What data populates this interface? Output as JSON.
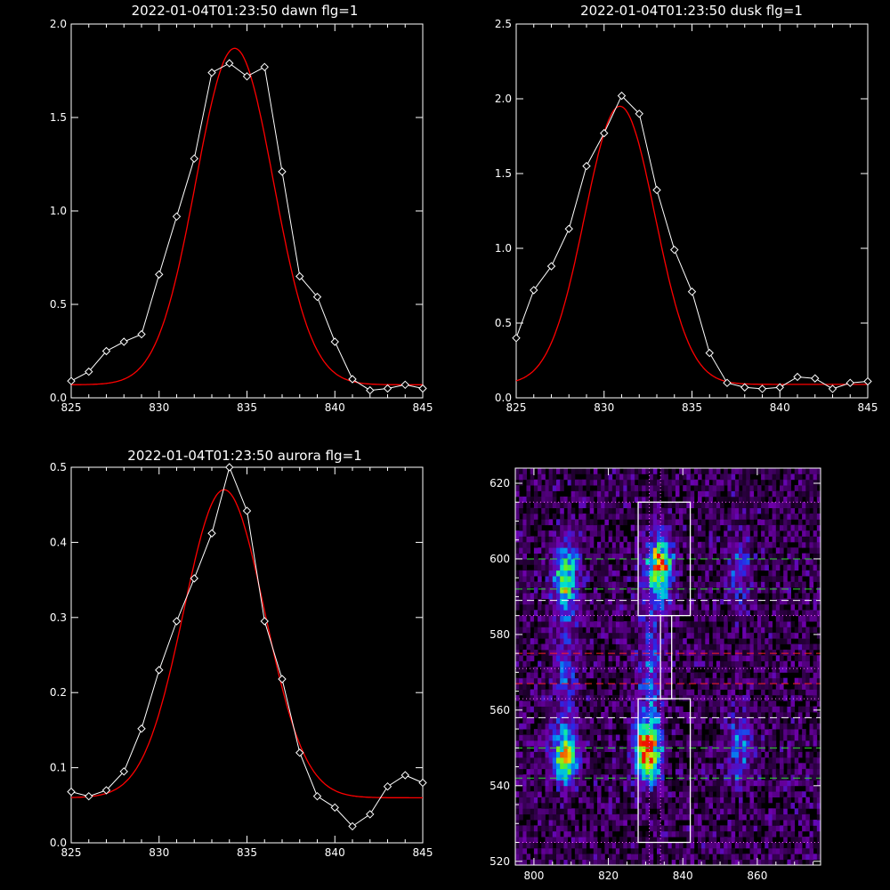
{
  "colors": {
    "background": "#000000",
    "observed": "#ffffff",
    "fit": "#ff0000"
  },
  "chart_data": [
    {
      "type": "line",
      "title": "2022-01-04T01:23:50 dawn flg=1",
      "xlim": [
        825,
        845
      ],
      "ylim": [
        0,
        2.0
      ],
      "xticks": [
        "825",
        "830",
        "835",
        "840",
        "845"
      ],
      "yticks": [
        "0.0",
        "0.5",
        "1.0",
        "1.5",
        "2.0"
      ],
      "xtick_values": [
        825,
        830,
        835,
        840,
        845
      ],
      "ytick_values": [
        0,
        0.5,
        1.0,
        1.5,
        2.0
      ],
      "observed": {
        "x": [
          825,
          826,
          827,
          828,
          829,
          830,
          831,
          832,
          833,
          834,
          835,
          836,
          837,
          838,
          839,
          840,
          841,
          842,
          843,
          844,
          845
        ],
        "y": [
          0.09,
          0.14,
          0.25,
          0.3,
          0.34,
          0.66,
          0.97,
          1.28,
          1.74,
          1.79,
          1.72,
          1.77,
          1.21,
          0.65,
          0.54,
          0.3,
          0.1,
          0.04,
          0.05,
          0.07,
          0.05
        ]
      },
      "fit": {
        "amplitude": 1.8,
        "center": 834.3,
        "sigma": 2.2,
        "offset": 0.07
      },
      "grid": false
    },
    {
      "type": "line",
      "title": "2022-01-04T01:23:50 dusk flg=1",
      "xlim": [
        825,
        845
      ],
      "ylim": [
        0,
        2.5
      ],
      "xticks": [
        "825",
        "830",
        "835",
        "840",
        "845"
      ],
      "yticks": [
        "0.0",
        "0.5",
        "1.0",
        "1.5",
        "2.0",
        "2.5"
      ],
      "xtick_values": [
        825,
        830,
        835,
        840,
        845
      ],
      "ytick_values": [
        0,
        0.5,
        1.0,
        1.5,
        2.0,
        2.5
      ],
      "observed": {
        "x": [
          825,
          826,
          827,
          828,
          829,
          830,
          831,
          832,
          833,
          834,
          835,
          836,
          837,
          838,
          839,
          840,
          841,
          842,
          843,
          844,
          845
        ],
        "y": [
          0.4,
          0.72,
          0.88,
          1.13,
          1.55,
          1.77,
          2.02,
          1.9,
          1.39,
          0.99,
          0.71,
          0.3,
          0.1,
          0.07,
          0.06,
          0.07,
          0.14,
          0.13,
          0.06,
          0.1,
          0.11
        ]
      },
      "fit": {
        "amplitude": 1.86,
        "center": 830.9,
        "sigma": 2.0,
        "offset": 0.09
      },
      "grid": false
    },
    {
      "type": "line",
      "title": "2022-01-04T01:23:50 aurora flg=1",
      "xlim": [
        825,
        845
      ],
      "ylim": [
        0,
        0.5
      ],
      "xticks": [
        "825",
        "830",
        "835",
        "840",
        "845"
      ],
      "yticks": [
        "0.0",
        "0.1",
        "0.2",
        "0.3",
        "0.4",
        "0.5"
      ],
      "xtick_values": [
        825,
        830,
        835,
        840,
        845
      ],
      "ytick_values": [
        0,
        0.1,
        0.2,
        0.3,
        0.4,
        0.5
      ],
      "observed": {
        "x": [
          825,
          826,
          827,
          828,
          829,
          830,
          831,
          832,
          833,
          834,
          835,
          836,
          837,
          838,
          839,
          840,
          841,
          842,
          843,
          844,
          845
        ],
        "y": [
          0.068,
          0.062,
          0.07,
          0.095,
          0.152,
          0.23,
          0.295,
          0.352,
          0.412,
          0.5,
          0.442,
          0.295,
          0.218,
          0.12,
          0.062,
          0.047,
          0.022,
          0.038,
          0.075,
          0.09,
          0.08
        ]
      },
      "fit": {
        "amplitude": 0.41,
        "center": 833.7,
        "sigma": 2.3,
        "offset": 0.06
      },
      "grid": false
    },
    {
      "type": "heatmap",
      "title": "",
      "xlim": [
        795,
        877
      ],
      "ylim": [
        519,
        624
      ],
      "xticks": [
        "800",
        "820",
        "840",
        "860"
      ],
      "yticks": [
        "520",
        "540",
        "560",
        "580",
        "600",
        "620"
      ],
      "xtick_values": [
        800,
        820,
        840,
        860
      ],
      "ytick_values": [
        520,
        540,
        560,
        580,
        600,
        620
      ],
      "sources": [
        {
          "x": 808.5,
          "y": 548,
          "sx": 2.3,
          "sy": 5,
          "amp": 0.72
        },
        {
          "x": 808.5,
          "y": 596,
          "sx": 2.3,
          "sy": 6,
          "amp": 0.55
        },
        {
          "x": 808.5,
          "y": 572,
          "sx": 2.5,
          "sy": 14,
          "amp": 0.22
        },
        {
          "x": 830.5,
          "y": 549,
          "sx": 2.3,
          "sy": 5,
          "amp": 1.0
        },
        {
          "x": 834.0,
          "y": 598,
          "sx": 2.3,
          "sy": 6,
          "amp": 0.78
        },
        {
          "x": 831.0,
          "y": 570,
          "sx": 2.5,
          "sy": 14,
          "amp": 0.28
        },
        {
          "x": 855.0,
          "y": 550,
          "sx": 2.3,
          "sy": 7,
          "amp": 0.3
        },
        {
          "x": 855.0,
          "y": 597,
          "sx": 2.3,
          "sy": 7,
          "amp": 0.25
        }
      ],
      "boxes": [
        {
          "x0": 828,
          "x1": 842,
          "y0": 585,
          "y1": 615
        },
        {
          "x0": 828,
          "x1": 842,
          "y0": 525,
          "y1": 563
        },
        {
          "x0": 834,
          "x1": 837,
          "y0": 563,
          "y1": 585
        }
      ],
      "vlines": [
        831,
        834
      ],
      "hlines": [
        {
          "y": 615,
          "color": "#ff66ff",
          "style": "dotted"
        },
        {
          "y": 600,
          "color": "#33dd33",
          "style": "dashed"
        },
        {
          "y": 592,
          "color": "#33dd33",
          "style": "dashed"
        },
        {
          "y": 589,
          "color": "#ffffff",
          "style": "dashed"
        },
        {
          "y": 585,
          "color": "#ff66ff",
          "style": "dotted"
        },
        {
          "y": 575,
          "color": "#ff2222",
          "style": "dashed"
        },
        {
          "y": 571,
          "color": "#ff66ff",
          "style": "dotted"
        },
        {
          "y": 567,
          "color": "#ff2222",
          "style": "dashed"
        },
        {
          "y": 563,
          "color": "#ff66ff",
          "style": "dotted"
        },
        {
          "y": 558,
          "color": "#ffffff",
          "style": "dashed"
        },
        {
          "y": 550,
          "color": "#33dd33",
          "style": "dashed"
        },
        {
          "y": 542,
          "color": "#33dd33",
          "style": "dashed"
        },
        {
          "y": 525,
          "color": "#ff66ff",
          "style": "dotted"
        }
      ]
    }
  ]
}
